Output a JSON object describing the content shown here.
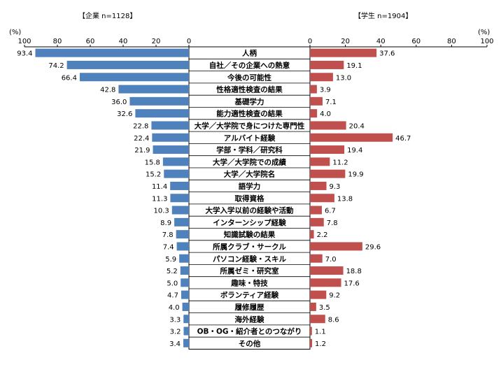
{
  "headers": {
    "left": "【企業 n=1128】",
    "right": "【学生 n=1904】"
  },
  "chart_data": {
    "type": "bar",
    "orientation": "horizontal-butterfly",
    "grid": false,
    "unit": "(%)",
    "left_axis": {
      "ticks": [
        "100",
        "80",
        "60",
        "40",
        "20",
        "0"
      ],
      "range": [
        0,
        100
      ],
      "direction": "right-to-left"
    },
    "right_axis": {
      "ticks": [
        "0",
        "20",
        "40",
        "60",
        "80",
        "100"
      ],
      "range": [
        0,
        100
      ],
      "direction": "left-to-right"
    },
    "categories": [
      "人柄",
      "自社／その企業への熱意",
      "今後の可能性",
      "性格適性検査の結果",
      "基礎学力",
      "能力適性検査の結果",
      "大学／大学院で身につけた専門性",
      "アルバイト経験",
      "学部・学科／研究科",
      "大学／大学院での成績",
      "大学／大学院名",
      "語学力",
      "取得資格",
      "大学入学以前の経験や活動",
      "インターンシップ経験",
      "知識試験の結果",
      "所属クラブ・サークル",
      "パソコン経験・スキル",
      "所属ゼミ・研究室",
      "趣味・特技",
      "ボランティア経験",
      "履修履歴",
      "海外経験",
      "OB・OG・紹介者とのつながり",
      "その他"
    ],
    "series": [
      {
        "side": "left",
        "color": "#4f81bd",
        "values": [
          93.4,
          74.2,
          66.4,
          42.8,
          36.0,
          32.6,
          22.8,
          22.4,
          21.9,
          15.8,
          15.2,
          11.4,
          11.3,
          10.3,
          8.9,
          7.8,
          7.4,
          5.9,
          5.2,
          5.0,
          4.7,
          4.0,
          3.3,
          3.2,
          3.4
        ],
        "labels": [
          "93.4",
          "74.2",
          "66.4",
          "42.8",
          "36.0",
          "32.6",
          "22.8",
          "22.4",
          "21.9",
          "15.8",
          "15.2",
          "11.4",
          "11.3",
          "10.3",
          "8.9",
          "7.8",
          "7.4",
          "5.9",
          "5.2",
          "5.0",
          "4.7",
          "4.0",
          "3.3",
          "3.2",
          "3.4"
        ]
      },
      {
        "side": "right",
        "color": "#c0504d",
        "values": [
          37.6,
          19.1,
          13.0,
          3.9,
          7.1,
          4.0,
          20.4,
          46.7,
          19.4,
          11.2,
          19.9,
          9.3,
          13.8,
          6.7,
          7.8,
          2.2,
          29.6,
          7.0,
          18.8,
          17.6,
          9.2,
          3.5,
          8.6,
          1.1,
          1.2
        ],
        "labels": [
          "37.6",
          "19.1",
          "13.0",
          "3.9",
          "7.1",
          "4.0",
          "20.4",
          "46.7",
          "19.4",
          "11.2",
          "19.9",
          "9.3",
          "13.8",
          "6.7",
          "7.8",
          "2.2",
          "29.6",
          "7.0",
          "18.8",
          "17.6",
          "9.2",
          "3.5",
          "8.6",
          "1.1",
          "1.2"
        ]
      }
    ]
  }
}
